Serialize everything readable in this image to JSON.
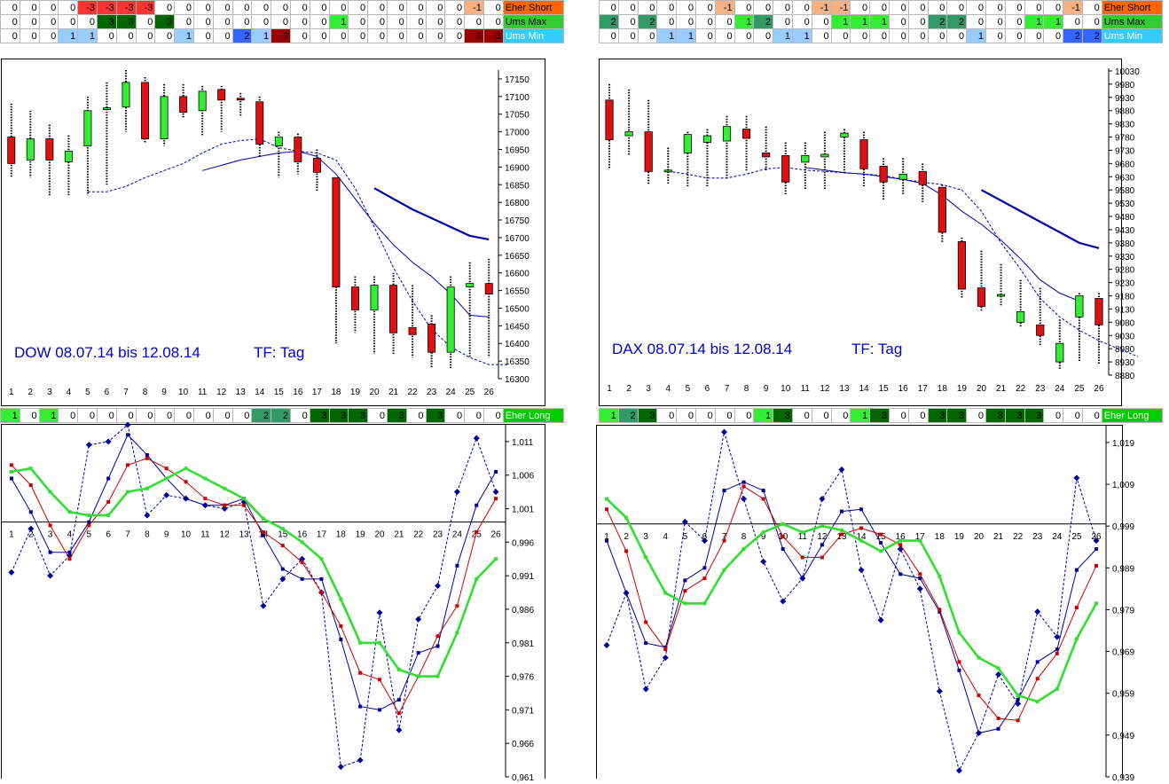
{
  "colors": {
    "pos1": "#33ee33",
    "pos2": "#339966",
    "pos3": "#006600",
    "neg1": "#f4b183",
    "neg3": "#ff3333",
    "min1": "#99ccff",
    "min2": "#3366ff",
    "min3": "#990000",
    "lab_short": "#ff6600",
    "lab_max": "#33cc33",
    "lab_min": "#33ccff",
    "lab_long": "#00cc00",
    "bull": "#33ee33",
    "bear": "#dd1111",
    "sma": "#0000aa",
    "axis_text": "#000000",
    "title": "#0000cc"
  },
  "grids": [
    {
      "name": "dow-signal-grid",
      "left": 0,
      "top": 0,
      "rows": [
        {
          "label": "Eher Short",
          "values": [
            0,
            0,
            0,
            0,
            -3,
            -3,
            -3,
            -3,
            0,
            0,
            0,
            0,
            0,
            0,
            0,
            0,
            0,
            0,
            0,
            0,
            0,
            0,
            0,
            0,
            -1,
            0
          ]
        },
        {
          "label": "Ums Max",
          "values": [
            0,
            0,
            0,
            0,
            0,
            3,
            3,
            0,
            3,
            0,
            0,
            0,
            0,
            0,
            0,
            0,
            0,
            1,
            0,
            0,
            0,
            0,
            0,
            0,
            0,
            0
          ]
        },
        {
          "label": "Ums Min",
          "values": [
            0,
            0,
            0,
            1,
            1,
            0,
            0,
            0,
            0,
            1,
            0,
            0,
            2,
            1,
            3,
            0,
            0,
            0,
            0,
            0,
            0,
            0,
            0,
            0,
            3,
            3
          ]
        }
      ]
    },
    {
      "name": "dax-signal-grid",
      "left": 675,
      "top": 0,
      "rows": [
        {
          "label": "Eher Short",
          "values": [
            0,
            0,
            0,
            0,
            0,
            0,
            -1,
            0,
            0,
            0,
            0,
            -1,
            -1,
            0,
            0,
            0,
            0,
            0,
            0,
            0,
            0,
            0,
            0,
            0,
            -1,
            0
          ]
        },
        {
          "label": "Ums Max",
          "values": [
            2,
            0,
            2,
            0,
            0,
            0,
            0,
            1,
            2,
            0,
            0,
            0,
            1,
            1,
            1,
            0,
            0,
            2,
            2,
            0,
            0,
            0,
            1,
            1,
            0,
            0
          ]
        },
        {
          "label": "Ums Min",
          "values": [
            0,
            0,
            0,
            1,
            1,
            0,
            0,
            0,
            0,
            1,
            1,
            0,
            0,
            0,
            0,
            0,
            0,
            0,
            0,
            1,
            0,
            0,
            0,
            0,
            2,
            2
          ]
        }
      ]
    },
    {
      "name": "dow-long-grid",
      "left": 0,
      "top": 460,
      "rows": [
        {
          "label": "Eher Long",
          "values": [
            1,
            0,
            1,
            0,
            0,
            0,
            0,
            0,
            0,
            0,
            0,
            0,
            0,
            2,
            2,
            0,
            3,
            3,
            3,
            0,
            3,
            0,
            3,
            0,
            0,
            0
          ]
        }
      ]
    },
    {
      "name": "dax-long-grid",
      "left": 675,
      "top": 460,
      "rows": [
        {
          "label": "Eher Long",
          "values": [
            1,
            2,
            3,
            0,
            0,
            0,
            0,
            0,
            1,
            3,
            0,
            0,
            0,
            1,
            3,
            0,
            0,
            3,
            3,
            0,
            3,
            3,
            3,
            0,
            0,
            0
          ]
        }
      ]
    }
  ],
  "chart_data": [
    {
      "type": "candlestick",
      "name": "dow-candles",
      "title": "DOW 08.07.14 bis 12.08.14",
      "tf": "TF: Tag",
      "x": [
        1,
        2,
        3,
        4,
        5,
        6,
        7,
        8,
        9,
        10,
        11,
        12,
        13,
        14,
        15,
        16,
        17,
        18,
        19,
        20,
        21,
        22,
        23,
        24,
        25,
        26
      ],
      "ylim": [
        16300,
        17175
      ],
      "yticks": [
        16300,
        16350,
        16400,
        16450,
        16500,
        16550,
        16600,
        16650,
        16700,
        16750,
        16800,
        16850,
        16900,
        16950,
        17000,
        17050,
        17100,
        17150
      ],
      "candles": [
        [
          16985,
          16910,
          17080,
          16870
        ],
        [
          16920,
          16980,
          17060,
          16870
        ],
        [
          16980,
          16920,
          17020,
          16820
        ],
        [
          16915,
          16945,
          16990,
          16820
        ],
        [
          16960,
          17060,
          17100,
          16820
        ],
        [
          17065,
          17068,
          17140,
          16850
        ],
        [
          17070,
          17140,
          17175,
          17000
        ],
        [
          17140,
          16980,
          17155,
          16970
        ],
        [
          16980,
          17100,
          17135,
          16960
        ],
        [
          17100,
          17055,
          17135,
          17040
        ],
        [
          17060,
          17115,
          17130,
          16990
        ],
        [
          17120,
          17090,
          17130,
          17000
        ],
        [
          17095,
          17090,
          17110,
          17045
        ],
        [
          17085,
          16965,
          17100,
          16930
        ],
        [
          16960,
          16985,
          17000,
          16870
        ],
        [
          16985,
          16915,
          16995,
          16880
        ],
        [
          16925,
          16885,
          16950,
          16830
        ],
        [
          16870,
          16560,
          16870,
          16400
        ],
        [
          16560,
          16495,
          16590,
          16430
        ],
        [
          16495,
          16565,
          16590,
          16370
        ],
        [
          16565,
          16430,
          16600,
          16370
        ],
        [
          16445,
          16425,
          16565,
          16360
        ],
        [
          16455,
          16375,
          16480,
          16330
        ],
        [
          16375,
          16560,
          16590,
          16330
        ],
        [
          16560,
          16570,
          16630,
          16360
        ],
        [
          16570,
          16540,
          16640,
          16360
        ]
      ],
      "sma_dashed": {
        "start": 5,
        "values": [
          16830,
          16830,
          16845,
          16870,
          16890,
          16910,
          16940,
          16965,
          16975,
          16980,
          16955,
          16945,
          16940,
          16920,
          16840,
          16730,
          16615,
          16520,
          16440,
          16390,
          16360,
          16340,
          16340
        ]
      },
      "sma_thin": {
        "start": 11,
        "values": [
          16890,
          16905,
          16920,
          16930,
          16940,
          16945,
          16930,
          16880,
          16810,
          16740,
          16680,
          16630,
          16590,
          16540,
          16480,
          16475
        ]
      },
      "sma_thick": {
        "start": 20,
        "values": [
          16840,
          16810,
          16780,
          16755,
          16730,
          16705,
          16695
        ]
      }
    },
    {
      "type": "candlestick",
      "name": "dax-candles",
      "title": "DAX 08.07.14 bis 12.08.14",
      "tf": "TF: Tag",
      "x": [
        1,
        2,
        3,
        4,
        5,
        6,
        7,
        8,
        9,
        10,
        11,
        12,
        13,
        14,
        15,
        16,
        17,
        18,
        19,
        20,
        21,
        22,
        23,
        24,
        25,
        26
      ],
      "ylim": [
        8880,
        10040
      ],
      "yticks": [
        8880,
        8930,
        8980,
        9030,
        9080,
        9130,
        9180,
        9230,
        9280,
        9330,
        9380,
        9430,
        9480,
        9530,
        9580,
        9630,
        9680,
        9730,
        9780,
        9830,
        9880,
        9930,
        9980,
        10030
      ],
      "candles": [
        [
          9920,
          9770,
          9980,
          9660
        ],
        [
          9785,
          9800,
          9960,
          9710
        ],
        [
          9800,
          9650,
          9920,
          9600
        ],
        [
          9655,
          9655,
          9740,
          9600
        ],
        [
          9720,
          9790,
          9800,
          9590
        ],
        [
          9760,
          9785,
          9810,
          9590
        ],
        [
          9765,
          9820,
          9860,
          9620
        ],
        [
          9810,
          9775,
          9860,
          9650
        ],
        [
          9720,
          9705,
          9820,
          9650
        ],
        [
          9710,
          9610,
          9760,
          9560
        ],
        [
          9685,
          9710,
          9760,
          9580
        ],
        [
          9705,
          9715,
          9800,
          9580
        ],
        [
          9780,
          9795,
          9810,
          9640
        ],
        [
          9770,
          9660,
          9800,
          9590
        ],
        [
          9670,
          9610,
          9700,
          9540
        ],
        [
          9620,
          9640,
          9700,
          9560
        ],
        [
          9650,
          9600,
          9680,
          9530
        ],
        [
          9590,
          9420,
          9600,
          9380
        ],
        [
          9385,
          9205,
          9400,
          9170
        ],
        [
          9210,
          9140,
          9350,
          9120
        ],
        [
          9185,
          9185,
          9300,
          9140
        ],
        [
          9080,
          9120,
          9240,
          9060
        ],
        [
          9070,
          9030,
          9210,
          8990
        ],
        [
          8930,
          9000,
          9090,
          8900
        ],
        [
          9100,
          9180,
          9190,
          8930
        ],
        [
          9170,
          9070,
          9190,
          8920
        ]
      ],
      "sma_dashed": {
        "start": 4,
        "values": [
          9650,
          9640,
          9625,
          9625,
          9640,
          9660,
          9665,
          9655,
          9650,
          9645,
          9640,
          9635,
          9620,
          9610,
          9600,
          9580,
          9500,
          9380,
          9280,
          9170,
          9100,
          9050,
          9010,
          8980,
          8950
        ]
      },
      "sma_thin": {
        "start": 11,
        "values": [
          9665,
          9655,
          9645,
          9640,
          9630,
          9620,
          9605,
          9560,
          9500,
          9450,
          9390,
          9320,
          9240,
          9190,
          9160
        ]
      },
      "sma_thick": {
        "start": 20,
        "values": [
          9580,
          9540,
          9500,
          9460,
          9420,
          9380,
          9360
        ]
      }
    },
    {
      "type": "line",
      "name": "dow-ratio",
      "x": [
        1,
        2,
        3,
        4,
        5,
        6,
        7,
        8,
        9,
        10,
        11,
        12,
        13,
        14,
        15,
        16,
        17,
        18,
        19,
        20,
        21,
        22,
        23,
        24,
        25,
        26
      ],
      "ylim": [
        0.961,
        1.0135
      ],
      "yticks": [
        0.961,
        0.966,
        0.971,
        0.976,
        0.981,
        0.986,
        0.991,
        0.996,
        1.001,
        1.006,
        1.011
      ],
      "baseline": 0.999,
      "series": [
        {
          "color": "#000099",
          "style": "dashed",
          "marker": "diamond",
          "values": [
            0.9915,
            0.998,
            0.991,
            0.994,
            1.0105,
            1.011,
            1.0135,
            1.0,
            1.003,
            1.0025,
            1.0015,
            1.001,
            1.002,
            0.9865,
            0.9905,
            0.9935,
            0.9885,
            0.9625,
            0.9635,
            0.9855,
            0.968,
            0.9845,
            0.9895,
            1.0035,
            1.0115,
            1.0035
          ]
        },
        {
          "color": "#000099",
          "style": "solid",
          "marker": "square",
          "values": [
            1.0055,
            1.0005,
            0.9945,
            0.9945,
            0.999,
            1.0055,
            1.012,
            1.009,
            1.0055,
            1.0025,
            1.0015,
            1.0015,
            1.0025,
            0.997,
            0.992,
            0.9905,
            0.9905,
            0.9815,
            0.9715,
            0.971,
            0.9725,
            0.9795,
            0.9805,
            0.9925,
            1.0015,
            1.0065
          ]
        },
        {
          "color": "#cc0000",
          "style": "solid",
          "marker": "square",
          "values": [
            1.0075,
            1.0045,
            0.9985,
            0.9935,
            0.9985,
            1.002,
            1.0075,
            1.0085,
            1.007,
            1.005,
            1.0025,
            1.0015,
            1.0015,
            0.9975,
            0.9955,
            0.993,
            0.9885,
            0.9835,
            0.9765,
            0.9755,
            0.9705,
            0.976,
            0.982,
            0.9865,
            0.9975,
            1.0025
          ]
        },
        {
          "color": "#33dd33",
          "style": "thick",
          "marker": "square",
          "values": [
            1.0065,
            1.007,
            1.0035,
            1.0005,
            1.0,
            1.0,
            1.0035,
            1.004,
            1.0055,
            1.007,
            1.0055,
            1.004,
            1.0025,
            0.9995,
            0.998,
            0.996,
            0.9935,
            0.9875,
            0.981,
            0.981,
            0.977,
            0.976,
            0.976,
            0.9825,
            0.9905,
            0.9935
          ]
        }
      ]
    },
    {
      "type": "line",
      "name": "dax-ratio",
      "x": [
        1,
        2,
        3,
        4,
        5,
        6,
        7,
        8,
        9,
        10,
        11,
        12,
        13,
        14,
        15,
        16,
        17,
        18,
        19,
        20,
        21,
        22,
        23,
        24,
        25,
        26
      ],
      "ylim": [
        0.939,
        1.023
      ],
      "yticks": [
        0.939,
        0.949,
        0.959,
        0.969,
        0.979,
        0.989,
        0.999,
        1.009,
        1.019
      ],
      "baseline": 0.9995,
      "series": [
        {
          "color": "#000099",
          "style": "dashed",
          "marker": "diamond",
          "values": [
            0.9705,
            0.983,
            0.96,
            0.9675,
            1.0,
            0.9955,
            1.0215,
            1.0055,
            0.9905,
            0.981,
            0.9865,
            1.0055,
            1.0125,
            0.9885,
            0.9765,
            0.9935,
            0.984,
            0.9595,
            0.9405,
            0.9495,
            0.9635,
            0.9565,
            0.9785,
            0.9725,
            1.0105,
            0.9955
          ]
        },
        {
          "color": "#000099",
          "style": "solid",
          "marker": "square",
          "values": [
            0.9955,
            0.983,
            0.971,
            0.97,
            0.986,
            0.989,
            1.0075,
            1.0095,
            1.0075,
            0.9935,
            0.9865,
            0.9945,
            1.0025,
            1.003,
            0.995,
            0.9875,
            0.9865,
            0.9785,
            0.9645,
            0.9495,
            0.9505,
            0.9575,
            0.9665,
            0.9695,
            0.9885,
            0.9935
          ]
        },
        {
          "color": "#cc0000",
          "style": "solid",
          "marker": "square",
          "values": [
            1.003,
            0.993,
            0.976,
            0.9695,
            0.9835,
            0.9865,
            0.9955,
            1.0085,
            1.0055,
            0.9965,
            0.9915,
            0.9915,
            0.997,
            0.9985,
            0.997,
            0.9945,
            0.9875,
            0.979,
            0.9665,
            0.9585,
            0.953,
            0.9525,
            0.9625,
            0.9685,
            0.9795,
            0.9895
          ]
        },
        {
          "color": "#33dd33",
          "style": "thick",
          "marker": "square",
          "values": [
            1.0055,
            1.001,
            0.9915,
            0.983,
            0.9805,
            0.9805,
            0.9885,
            0.9935,
            0.9975,
            0.9995,
            0.9975,
            0.999,
            0.998,
            0.9955,
            0.993,
            0.9955,
            0.9955,
            0.987,
            0.9735,
            0.9675,
            0.965,
            0.9585,
            0.957,
            0.96,
            0.972,
            0.9805
          ]
        }
      ]
    }
  ]
}
